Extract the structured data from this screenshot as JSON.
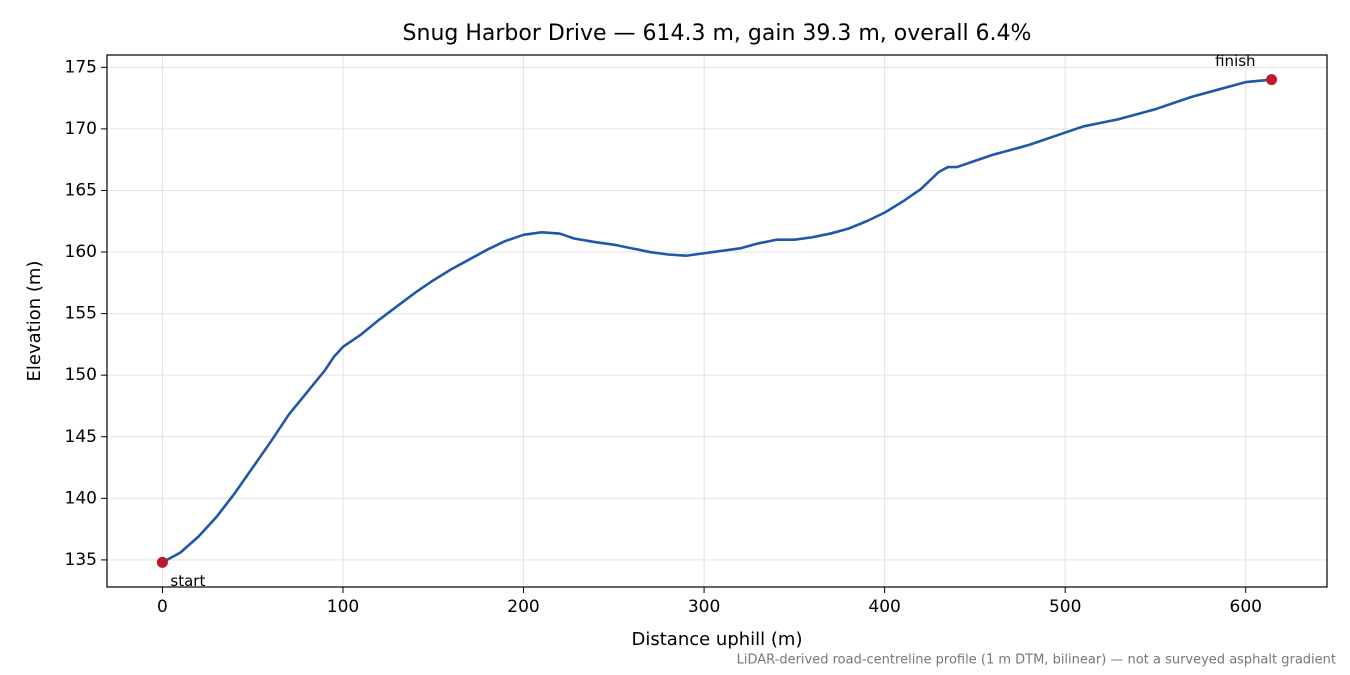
{
  "chart_data": {
    "type": "line",
    "title": "Snug Harbor Drive — 614.3 m, gain 39.3 m, overall 6.4%",
    "xlabel": "Distance uphill (m)",
    "ylabel": "Elevation (m)",
    "note": "LiDAR-derived road-centreline profile (1 m DTM, bilinear) — not a surveyed asphalt gradient",
    "x": [
      0,
      10,
      20,
      30,
      40,
      50,
      60,
      70,
      80,
      90,
      95,
      100,
      110,
      120,
      130,
      140,
      150,
      160,
      170,
      180,
      190,
      200,
      210,
      220,
      228,
      240,
      250,
      260,
      270,
      280,
      290,
      300,
      310,
      320,
      330,
      340,
      350,
      360,
      370,
      380,
      390,
      400,
      410,
      420,
      430,
      435,
      440,
      450,
      460,
      470,
      480,
      490,
      500,
      510,
      520,
      530,
      540,
      550,
      560,
      570,
      580,
      590,
      600,
      614.3
    ],
    "values": [
      134.8,
      135.6,
      136.9,
      138.5,
      140.4,
      142.5,
      144.6,
      146.8,
      148.6,
      150.4,
      151.5,
      152.3,
      153.3,
      154.5,
      155.6,
      156.7,
      157.7,
      158.6,
      159.4,
      160.2,
      160.9,
      161.4,
      161.6,
      161.5,
      161.1,
      160.8,
      160.6,
      160.3,
      160.0,
      159.8,
      159.7,
      159.9,
      160.1,
      160.3,
      160.7,
      161.0,
      161.0,
      161.2,
      161.5,
      161.9,
      162.5,
      163.2,
      164.1,
      165.1,
      166.5,
      166.9,
      166.9,
      167.4,
      167.9,
      168.3,
      168.7,
      169.2,
      169.7,
      170.2,
      170.5,
      170.8,
      171.2,
      171.6,
      172.1,
      172.6,
      173.0,
      173.4,
      173.8,
      174.0
    ],
    "color": "#1f58a8",
    "markers": [
      {
        "label": "start",
        "x": 0,
        "y": 134.8
      },
      {
        "label": "finish",
        "x": 614.3,
        "y": 174.0
      }
    ],
    "marker_color": "#c0182a",
    "xlim": [
      -30.7,
      645
    ],
    "ylim": [
      132.8,
      176.0
    ],
    "xticks": [
      0,
      100,
      200,
      300,
      400,
      500,
      600
    ],
    "yticks": [
      135,
      140,
      145,
      150,
      155,
      160,
      165,
      170,
      175
    ],
    "grid": true
  }
}
